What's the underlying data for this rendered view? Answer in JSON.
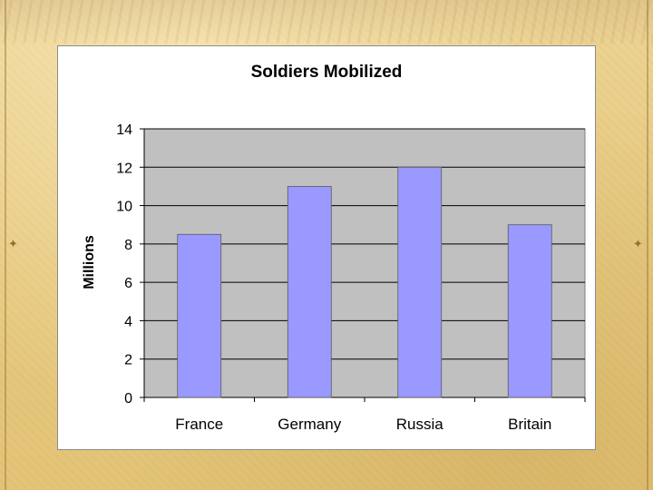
{
  "chart_data": {
    "type": "bar",
    "title": "Soldiers Mobilized",
    "xlabel": "",
    "ylabel": "Millions",
    "categories": [
      "France",
      "Germany",
      "Russia",
      "Britain"
    ],
    "values": [
      8.5,
      11,
      12,
      9
    ],
    "ylim": [
      0,
      14
    ],
    "yticks": [
      0,
      2,
      4,
      6,
      8,
      10,
      12,
      14
    ],
    "grid": true,
    "legend": "none",
    "colors": {
      "bar": "#9999ff",
      "plot_area": "#c0c0c0",
      "gridline": "#000000"
    }
  }
}
